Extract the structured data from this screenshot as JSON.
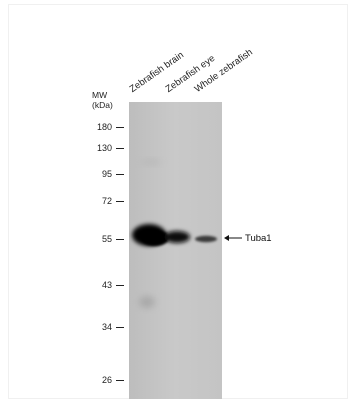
{
  "lanes": [
    {
      "label": "Zebrafish brain"
    },
    {
      "label": "Zebrafish eye"
    },
    {
      "label": "Whole zebrafish"
    }
  ],
  "mw": {
    "title_line1": "MW",
    "title_line2": "(kDa)",
    "markers": [
      "180",
      "130",
      "95",
      "72",
      "55",
      "43",
      "34",
      "26"
    ]
  },
  "target": {
    "label": "Tuba1"
  },
  "colors": {
    "membrane": "#c6c6c6",
    "band": "#0d0d0d"
  }
}
